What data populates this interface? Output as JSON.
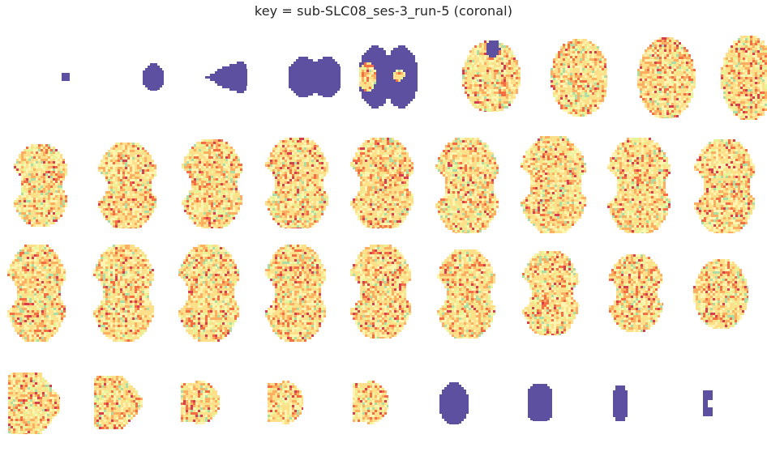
{
  "title": "key = sub-SLC08_ses-3_run-5 (coronal)",
  "colormap": {
    "name": "Spectral_r",
    "masked_color": "#5e50a1",
    "stops": [
      "#fee08b",
      "#fdae61",
      "#f46d43",
      "#e6f598",
      "#abdda4",
      "#d53e4f"
    ]
  },
  "grid": {
    "rows": 4,
    "cols": 9
  },
  "slices": [
    {
      "row": 0,
      "col": 0,
      "shape": "square",
      "fill": "masked"
    },
    {
      "row": 0,
      "col": 1,
      "shape": "round",
      "fill": "masked"
    },
    {
      "row": 0,
      "col": 2,
      "shape": "wedge-left",
      "fill": "masked"
    },
    {
      "row": 0,
      "col": 3,
      "shape": "lobes",
      "fill": "masked"
    },
    {
      "row": 0,
      "col": 4,
      "shape": "lobes",
      "fill": "mixed"
    },
    {
      "row": 0,
      "col": 5,
      "shape": "blob",
      "fill": "texture-edge"
    },
    {
      "row": 0,
      "col": 6,
      "shape": "blob",
      "fill": "texture"
    },
    {
      "row": 0,
      "col": 7,
      "shape": "blob",
      "fill": "texture"
    },
    {
      "row": 0,
      "col": 8,
      "shape": "blob",
      "fill": "texture"
    },
    {
      "row": 1,
      "col": 0,
      "shape": "kidney",
      "fill": "texture"
    },
    {
      "row": 1,
      "col": 1,
      "shape": "kidney",
      "fill": "texture"
    },
    {
      "row": 1,
      "col": 2,
      "shape": "kidney",
      "fill": "texture"
    },
    {
      "row": 1,
      "col": 3,
      "shape": "kidney",
      "fill": "texture"
    },
    {
      "row": 1,
      "col": 4,
      "shape": "kidney",
      "fill": "texture"
    },
    {
      "row": 1,
      "col": 5,
      "shape": "kidney",
      "fill": "texture"
    },
    {
      "row": 1,
      "col": 6,
      "shape": "kidney",
      "fill": "texture"
    },
    {
      "row": 1,
      "col": 7,
      "shape": "kidney",
      "fill": "texture"
    },
    {
      "row": 1,
      "col": 8,
      "shape": "kidney",
      "fill": "texture"
    },
    {
      "row": 2,
      "col": 0,
      "shape": "kidney",
      "fill": "texture"
    },
    {
      "row": 2,
      "col": 1,
      "shape": "kidney",
      "fill": "texture"
    },
    {
      "row": 2,
      "col": 2,
      "shape": "kidney",
      "fill": "texture"
    },
    {
      "row": 2,
      "col": 3,
      "shape": "kidney",
      "fill": "texture"
    },
    {
      "row": 2,
      "col": 4,
      "shape": "kidney",
      "fill": "texture"
    },
    {
      "row": 2,
      "col": 5,
      "shape": "kidney",
      "fill": "texture"
    },
    {
      "row": 2,
      "col": 6,
      "shape": "kidney",
      "fill": "texture"
    },
    {
      "row": 2,
      "col": 7,
      "shape": "kidney",
      "fill": "texture"
    },
    {
      "row": 2,
      "col": 8,
      "shape": "blob",
      "fill": "texture"
    },
    {
      "row": 3,
      "col": 0,
      "shape": "wedge-right",
      "fill": "texture"
    },
    {
      "row": 3,
      "col": 1,
      "shape": "wedge-right",
      "fill": "texture"
    },
    {
      "row": 3,
      "col": 2,
      "shape": "half-round",
      "fill": "texture"
    },
    {
      "row": 3,
      "col": 3,
      "shape": "half-round",
      "fill": "texture"
    },
    {
      "row": 3,
      "col": 4,
      "shape": "half-round",
      "fill": "texture"
    },
    {
      "row": 3,
      "col": 5,
      "shape": "round",
      "fill": "masked"
    },
    {
      "row": 3,
      "col": 6,
      "shape": "capsule",
      "fill": "masked"
    },
    {
      "row": 3,
      "col": 7,
      "shape": "capsule",
      "fill": "masked"
    },
    {
      "row": 3,
      "col": 8,
      "shape": "notch",
      "fill": "masked"
    }
  ]
}
